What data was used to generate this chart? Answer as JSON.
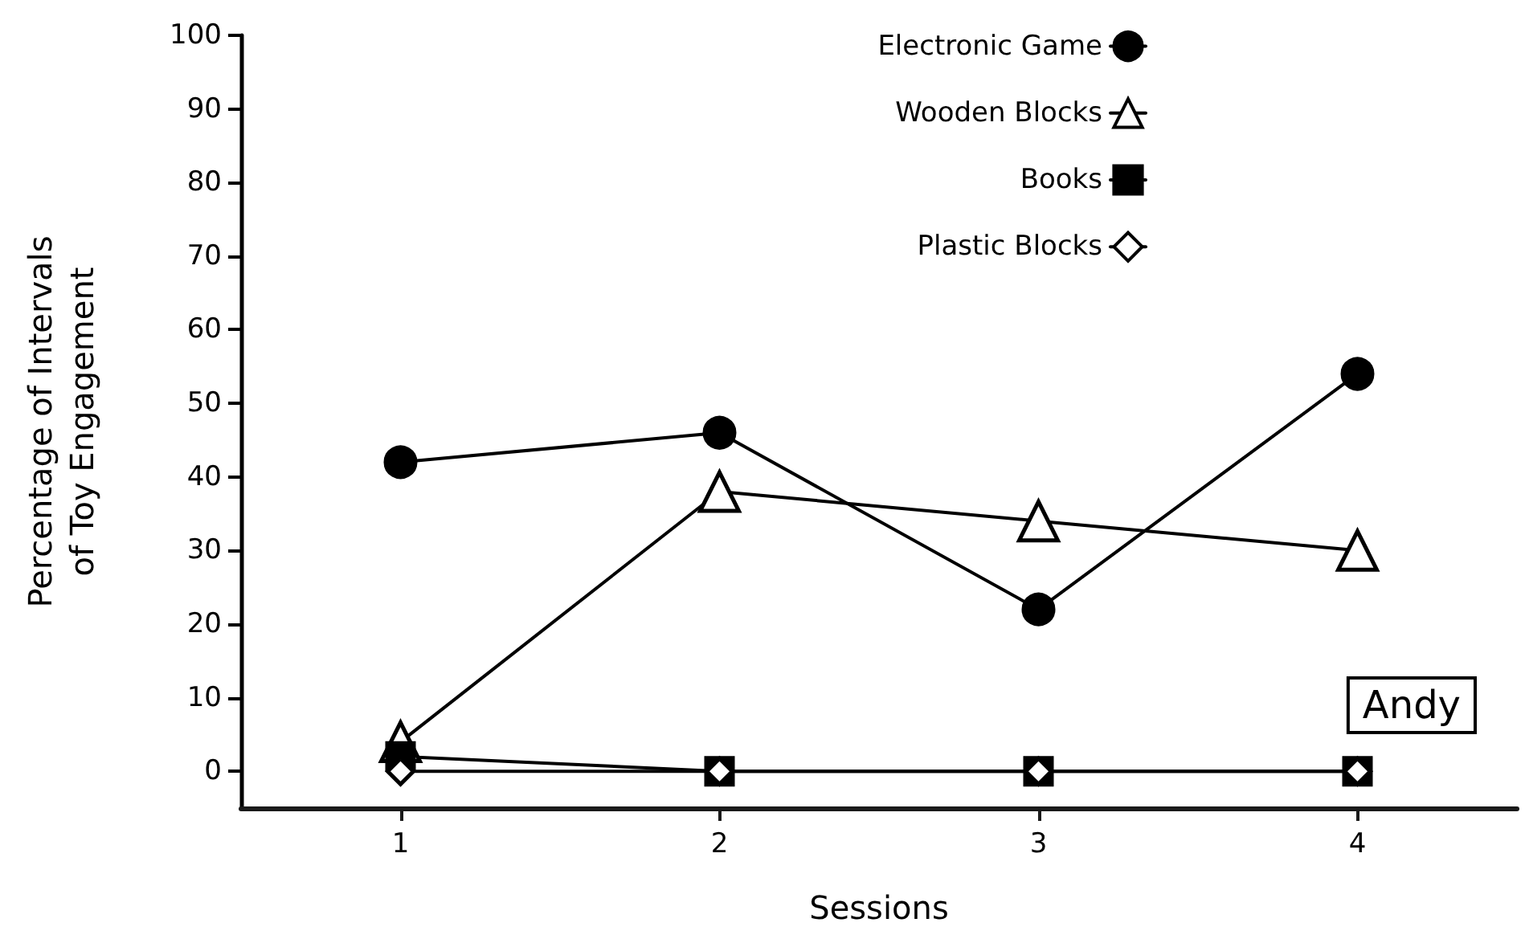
{
  "chart_data": {
    "type": "line",
    "xlabel": "Sessions",
    "ylabel": "Percentage of Intervals\nof Toy Engagement",
    "x": [
      1,
      2,
      3,
      4
    ],
    "xlim": [
      0.5,
      4.5
    ],
    "xticks": [
      1,
      2,
      3,
      4
    ],
    "ylim": [
      -5,
      100
    ],
    "yticks": [
      0,
      10,
      20,
      30,
      40,
      50,
      60,
      70,
      80,
      90,
      100
    ],
    "grid": false,
    "legend": "top right",
    "line_style": "solid",
    "annotations": [
      "Andy"
    ],
    "series": [
      {
        "name": "Electronic Game",
        "color": "#000000",
        "marker": "circle",
        "values": [
          42,
          46,
          22,
          54
        ]
      },
      {
        "name": "Wooden Blocks",
        "color": "#000000",
        "marker": "triangle",
        "values": [
          4,
          38,
          34,
          30
        ]
      },
      {
        "name": "Books",
        "color": "#000000",
        "marker": "square",
        "values": [
          2,
          0,
          0,
          0
        ]
      },
      {
        "name": "Plastic Blocks",
        "color": "#000000",
        "marker": "diamond",
        "values": [
          0,
          0,
          0,
          0
        ]
      }
    ]
  }
}
